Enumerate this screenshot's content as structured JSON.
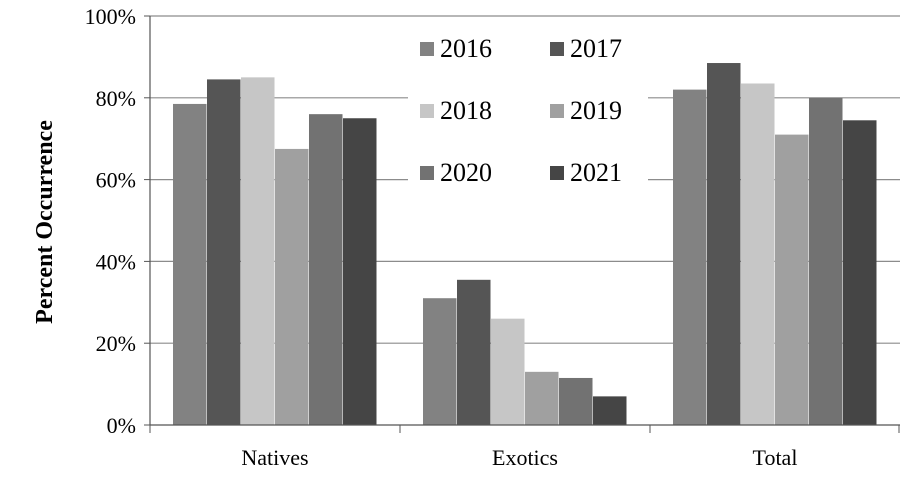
{
  "chart_data": {
    "type": "bar",
    "title": "",
    "xlabel": "",
    "ylabel": "Percent Occurrence",
    "ylim": [
      0,
      100
    ],
    "yticks": [
      "0%",
      "20%",
      "40%",
      "60%",
      "80%",
      "100%"
    ],
    "ytick_values": [
      0,
      20,
      40,
      60,
      80,
      100
    ],
    "grid": true,
    "legend_position": "top-center",
    "categories": [
      "Natives",
      "Exotics",
      "Total"
    ],
    "series": [
      {
        "name": "2016",
        "color": "#828282",
        "values": [
          78.5,
          31,
          82
        ]
      },
      {
        "name": "2017",
        "color": "#555555",
        "values": [
          84.5,
          35.5,
          88.5
        ]
      },
      {
        "name": "2018",
        "color": "#c6c6c6",
        "values": [
          85,
          26,
          83.5
        ]
      },
      {
        "name": "2019",
        "color": "#a0a0a0",
        "values": [
          67.5,
          13,
          71
        ]
      },
      {
        "name": "2020",
        "color": "#727272",
        "values": [
          76,
          11.5,
          80
        ]
      },
      {
        "name": "2021",
        "color": "#454545",
        "values": [
          75,
          7,
          74.5
        ]
      }
    ]
  }
}
